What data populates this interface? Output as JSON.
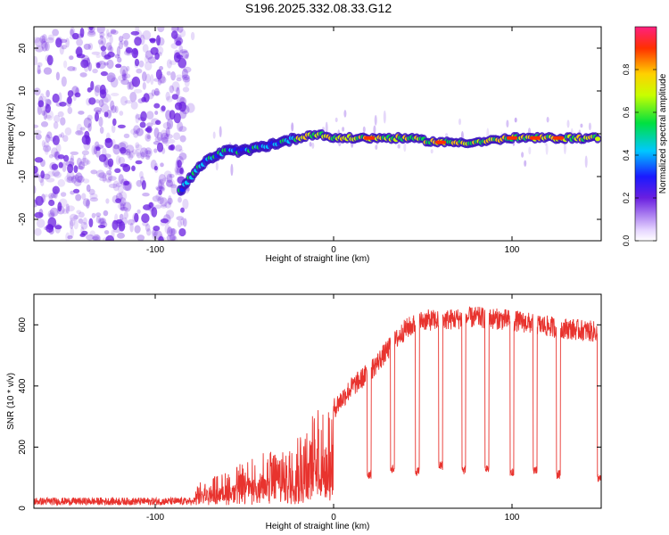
{
  "title": "S196.2025.332.08.33.G12",
  "colors": {
    "snr_line": "#e8332e",
    "axis": "#000000",
    "scatter": "#6a1fe0"
  },
  "chart_data": [
    {
      "type": "heatmap",
      "name": "spectrogram",
      "xlabel": "Height of straight line (km)",
      "ylabel": "Frequency (Hz)",
      "xlim": [
        -168,
        150
      ],
      "ylim": [
        -25,
        25
      ],
      "xticks": [
        -100,
        0,
        100
      ],
      "xtick_labels": [
        "-100",
        "0",
        "100"
      ],
      "yticks": [
        -20,
        -10,
        0,
        10,
        20
      ],
      "ytick_labels": [
        "-20",
        "-10",
        "0",
        "10",
        "20"
      ],
      "ridge": {
        "description_points_x": [
          -85,
          -78,
          -70,
          -60,
          -50,
          -40,
          -30,
          -20,
          -10,
          0,
          20,
          40,
          60,
          80,
          100,
          120,
          148
        ],
        "description_points_y": [
          -13,
          -9,
          -6,
          -4,
          -4,
          -3,
          -2,
          -1,
          0,
          -1,
          -1,
          -1,
          -2,
          -2,
          -1,
          -1,
          -1
        ]
      },
      "colorbar": {
        "label": "Normalized spectral amplitude",
        "range": [
          0,
          1
        ],
        "ticks": [
          0.0,
          0.2,
          0.4,
          0.6,
          0.8
        ],
        "tick_labels": [
          "0.0",
          "0.2",
          "0.4",
          "0.6",
          "0.8"
        ]
      }
    },
    {
      "type": "line",
      "name": "snr",
      "xlabel": "Height of straight line (km)",
      "ylabel": "SNR (10 * v/v)",
      "xlim": [
        -168,
        150
      ],
      "ylim": [
        0,
        700
      ],
      "xticks": [
        -100,
        0,
        100
      ],
      "xtick_labels": [
        "-100",
        "0",
        "100"
      ],
      "yticks": [
        0,
        200,
        400,
        600
      ],
      "ytick_labels": [
        "0",
        "200",
        "400",
        "600"
      ],
      "series": [
        {
          "name": "SNR",
          "envelope_x": [
            -168,
            -80,
            -75,
            -60,
            -45,
            -30,
            -20,
            -10,
            0,
            10,
            20,
            30,
            40,
            50,
            60,
            80,
            100,
            120,
            150
          ],
          "envelope_y": [
            25,
            25,
            90,
            120,
            170,
            200,
            260,
            320,
            350,
            420,
            470,
            540,
            610,
            640,
            640,
            650,
            640,
            620,
            600
          ],
          "dip_x": [
            20,
            33,
            47,
            60,
            73,
            86,
            100,
            113,
            126,
            149
          ],
          "dip_y": [
            110,
            130,
            120,
            140,
            125,
            130,
            115,
            120,
            110,
            100
          ]
        }
      ]
    }
  ]
}
